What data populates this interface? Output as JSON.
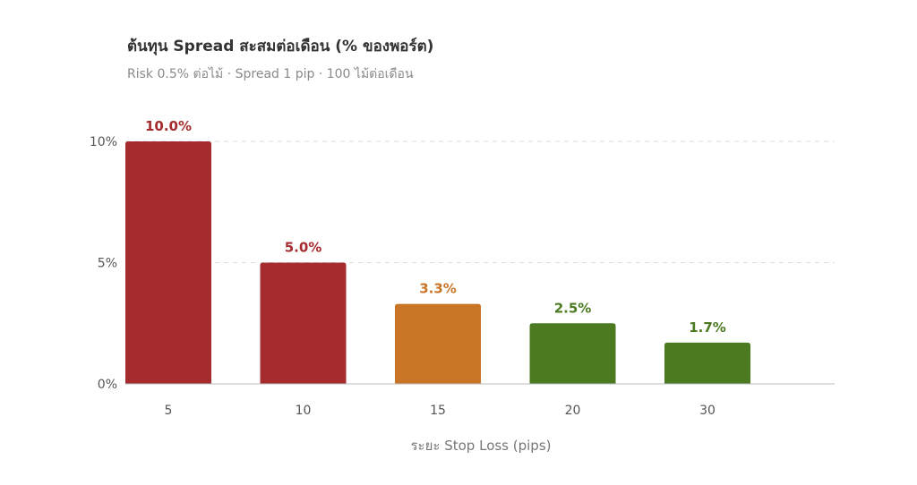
{
  "chart_data": {
    "type": "bar",
    "title": "ต้นทุน Spread สะสมต่อเดือน (% ของพอร์ต)",
    "subtitle": "Risk 0.5% ต่อไม้ · Spread 1 pip · 100 ไม้ต่อเดือน",
    "xlabel": "ระยะ Stop Loss (pips)",
    "ylabel": "",
    "categories": [
      "5",
      "10",
      "15",
      "20",
      "30"
    ],
    "values": [
      10.0,
      5.0,
      3.3,
      2.5,
      1.7
    ],
    "data_labels": [
      "10.0%",
      "5.0%",
      "3.3%",
      "2.5%",
      "1.7%"
    ],
    "bar_colors": [
      "#a52b2f",
      "#a52b2f",
      "#c87528",
      "#4b7a20",
      "#4b7a20"
    ],
    "ylim": [
      0,
      10
    ],
    "yticks": [
      {
        "value": 0,
        "label": "0%"
      },
      {
        "value": 5,
        "label": "5%"
      },
      {
        "value": 10,
        "label": "10%"
      }
    ],
    "grid": true
  }
}
